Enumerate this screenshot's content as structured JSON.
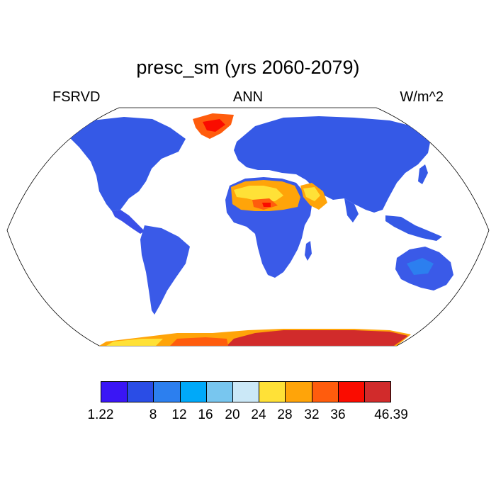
{
  "title": "presc_sm (yrs 2060-2079)",
  "left_label": "FSRVD",
  "center_label": "ANN",
  "right_label": "W/m^2",
  "projection": "Robinson",
  "colorbar": {
    "colors": [
      "#3a16f5",
      "#2a4de6",
      "#2c7fef",
      "#00a9f9",
      "#78c6ef",
      "#cbe8f7",
      "#ffe137",
      "#ffa409",
      "#ff5c0d",
      "#fa0c00",
      "#d12b2b"
    ],
    "labels": [
      "1.22",
      "8",
      "12",
      "16",
      "20",
      "24",
      "28",
      "32",
      "36",
      "46.39"
    ]
  },
  "map_fill": {
    "dominant_land": "#3a5ae8",
    "greenland": "#ff5c0d",
    "sahara_arabia": [
      "#ffe137",
      "#ffa409",
      "#ff5c0d",
      "#fa0c00"
    ],
    "antarctica": "#d12b2b",
    "antarctica_coast": [
      "#ffe137",
      "#ffa409",
      "#ff5c0d"
    ]
  }
}
